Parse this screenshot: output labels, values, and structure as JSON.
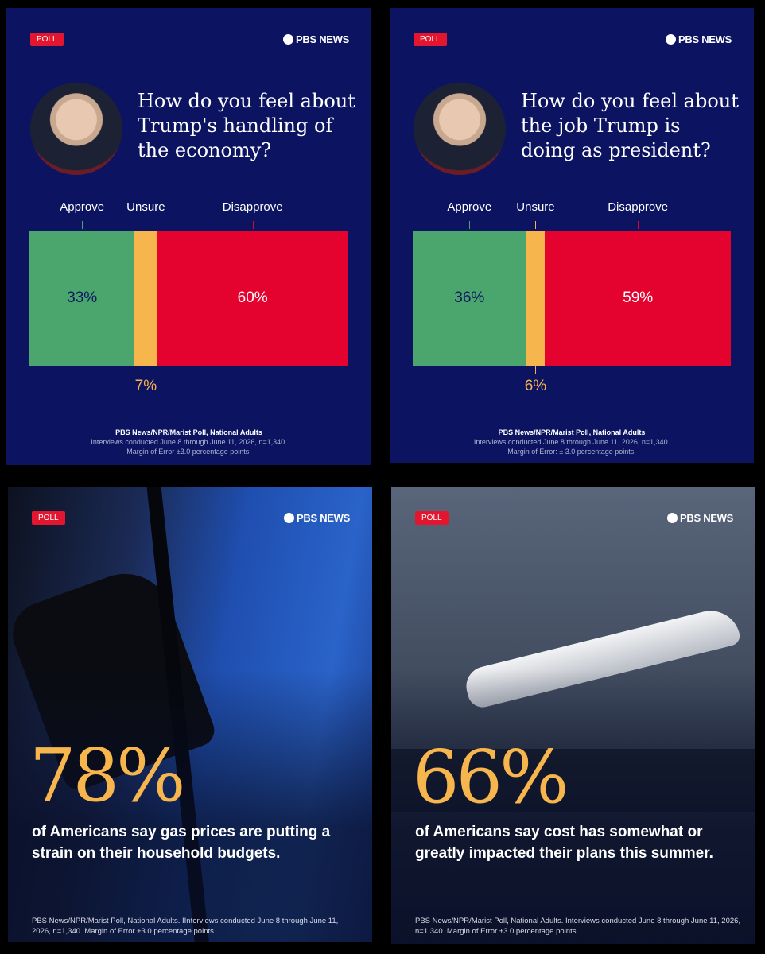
{
  "chart_data": [
    {
      "type": "bar",
      "stacked": true,
      "orientation": "horizontal",
      "badge": "POLL",
      "brand": "PBS NEWS",
      "title": "How do you feel about Trump's handling of the economy?",
      "categories": [
        "Approve",
        "Unsure",
        "Disapprove"
      ],
      "values": [
        33,
        7,
        60
      ],
      "value_labels": [
        "33%",
        "7%",
        "60%"
      ],
      "colors": [
        "#4aa66c",
        "#f6b54d",
        "#e4022f"
      ],
      "xlim": [
        0,
        100
      ],
      "source": [
        "PBS News/NPR/Marist Poll, National Adults",
        "Interviews conducted June 8 through June 11, 2026, n=1,340.",
        "Margin of Error ±3.0 percentage points."
      ]
    },
    {
      "type": "bar",
      "stacked": true,
      "orientation": "horizontal",
      "badge": "POLL",
      "brand": "PBS NEWS",
      "title": "How do you feel about the job Trump is doing as president?",
      "categories": [
        "Approve",
        "Unsure",
        "Disapprove"
      ],
      "values": [
        36,
        6,
        59
      ],
      "value_labels": [
        "36%",
        "6%",
        "59%"
      ],
      "colors": [
        "#4aa66c",
        "#f6b54d",
        "#e4022f"
      ],
      "xlim": [
        0,
        101
      ],
      "source": [
        "PBS News/NPR/Marist Poll, National Adults",
        "Interviews conducted June 8 through June 11, 2026, n=1,340.",
        "Margin of Error: ± 3.0 percentage points."
      ]
    }
  ],
  "cards": [
    {
      "badge": "POLL",
      "brand": "PBS NEWS",
      "stat": "78%",
      "text": "of Americans say gas prices are putting a strain on their household budgets.",
      "source": "PBS News/NPR/Marist Poll, National Adults. IInterviews conducted June 8 through June 11, 2026, n=1,340. Margin of Error ±3.0 percentage points."
    },
    {
      "badge": "POLL",
      "brand": "PBS NEWS",
      "stat": "66%",
      "text": "of Americans say cost has somewhat or greatly impacted their plans this summer.",
      "source": "PBS News/NPR/Marist Poll, National Adults. Interviews conducted June 8 through June 11, 2026, n=1,340. Margin of Error ±3.0 percentage points."
    }
  ]
}
